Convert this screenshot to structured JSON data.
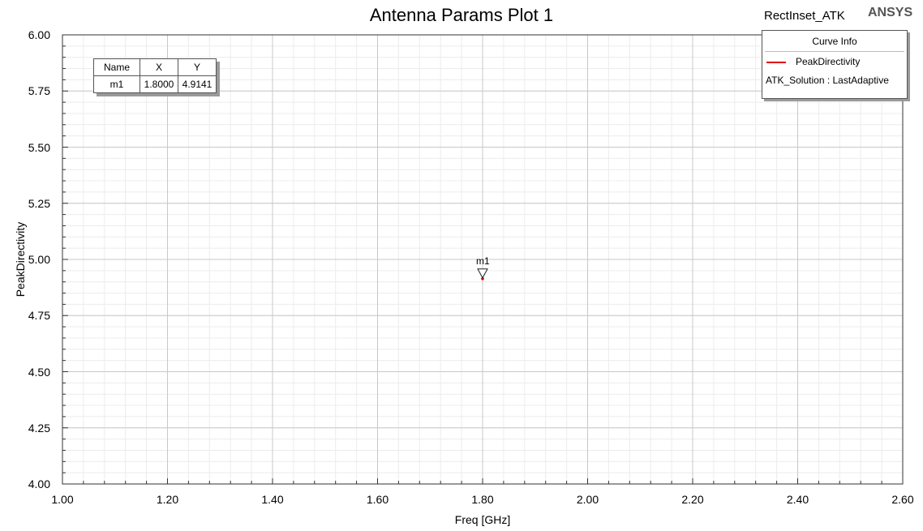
{
  "chart_data": {
    "type": "line",
    "title": "Antenna Params Plot 1",
    "design_name": "RectInset_ATK",
    "brand": "ANSYS",
    "xlabel": "Freq [GHz]",
    "ylabel": "PeakDirectivity",
    "xlim": [
      1.0,
      2.6
    ],
    "ylim": [
      4.0,
      6.0
    ],
    "x_ticks": [
      "1.00",
      "1.20",
      "1.40",
      "1.60",
      "1.80",
      "2.00",
      "2.20",
      "2.40",
      "2.60"
    ],
    "y_ticks": [
      "4.00",
      "4.25",
      "4.50",
      "4.75",
      "5.00",
      "5.25",
      "5.50",
      "5.75",
      "6.00"
    ],
    "grid": true,
    "series": [
      {
        "name": "PeakDirectivity",
        "solution": "ATK_Solution : LastAdaptive",
        "color": "#e00000",
        "x": [
          1.8
        ],
        "y": [
          4.9141
        ]
      }
    ],
    "legend": {
      "title": "Curve Info",
      "placement": "top-right"
    },
    "markers": {
      "headers": [
        "Name",
        "X",
        "Y"
      ],
      "rows": [
        {
          "name": "m1",
          "x": "1.8000",
          "y": "4.9141",
          "xv": 1.8,
          "yv": 4.9141
        }
      ]
    }
  }
}
